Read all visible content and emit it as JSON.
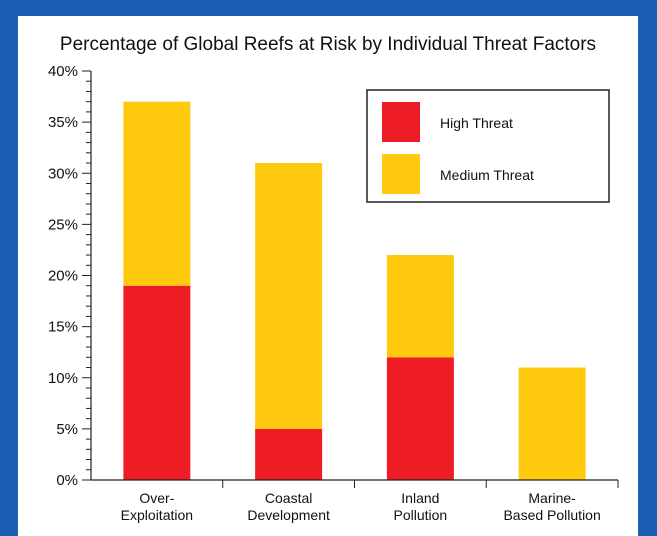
{
  "chart_data": {
    "type": "bar",
    "stacked": true,
    "title": "Percentage of Global Reefs at Risk by Individual Threat Factors",
    "categories": [
      [
        "Over-",
        "Exploitation"
      ],
      [
        "Coastal",
        "Development"
      ],
      [
        "Inland",
        "Pollution"
      ],
      [
        "Marine-",
        "Based Pollution"
      ]
    ],
    "series": [
      {
        "name": "High Threat",
        "color": "#ee1c25",
        "values": [
          19,
          5,
          12,
          0
        ]
      },
      {
        "name": "Medium Threat",
        "color": "#ffc90e",
        "values": [
          18,
          26,
          10,
          11
        ]
      }
    ],
    "ylim": [
      0,
      40
    ],
    "yticks": [
      "0%",
      "5%",
      "10%",
      "15%",
      "20%",
      "25%",
      "30%",
      "35%",
      "40%"
    ],
    "ytick_values": [
      0,
      5,
      10,
      15,
      20,
      25,
      30,
      35,
      40
    ],
    "legend_position": "top-right",
    "grid": false
  }
}
